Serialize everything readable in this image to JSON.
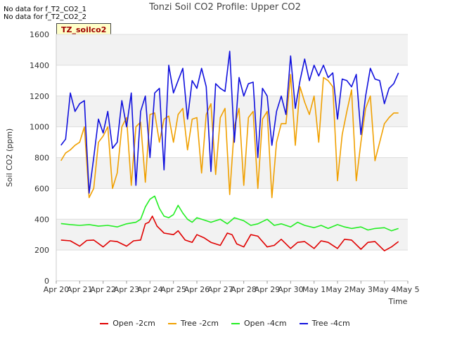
{
  "header": {
    "nodata_lines": [
      "No data for f_T2_CO2_1",
      "No data for f_T2_CO2_2"
    ],
    "badge": "TZ_soilco2"
  },
  "chart_data": {
    "type": "line",
    "title": "Tonzi Soil CO2 Profile: Upper CO2",
    "xlabel": "Time",
    "ylabel": "Soil CO2 (ppm)",
    "ylim": [
      0,
      1600
    ],
    "yticks": [
      0,
      200,
      400,
      600,
      800,
      1000,
      1200,
      1400,
      1600
    ],
    "xlim": [
      0,
      15
    ],
    "xtick_labels": [
      "Apr 20",
      "Apr 21",
      "Apr 22",
      "Apr 23",
      "Apr 24",
      "Apr 25",
      "Apr 26",
      "Apr 27",
      "Apr 28",
      "Apr 29",
      "Apr 30",
      "May 1",
      "May 2",
      "May 3",
      "May 4",
      "May 5"
    ],
    "grid": true,
    "legend_position": "bottom",
    "series": [
      {
        "name": "Open -2cm",
        "color": "#e00000",
        "x": [
          0.2,
          0.6,
          1.0,
          1.3,
          1.6,
          2.0,
          2.3,
          2.6,
          3.0,
          3.3,
          3.6,
          3.8,
          3.95,
          4.1,
          4.3,
          4.6,
          5.0,
          5.2,
          5.5,
          5.8,
          6.0,
          6.3,
          6.6,
          7.0,
          7.3,
          7.5,
          7.7,
          8.0,
          8.3,
          8.6,
          9.0,
          9.3,
          9.6,
          10.0,
          10.3,
          10.6,
          11.0,
          11.3,
          11.6,
          12.0,
          12.3,
          12.6,
          13.0,
          13.3,
          13.6,
          14.0,
          14.3,
          14.6
        ],
        "y": [
          265,
          260,
          225,
          262,
          265,
          220,
          260,
          255,
          225,
          260,
          265,
          370,
          380,
          420,
          355,
          310,
          300,
          325,
          265,
          250,
          300,
          280,
          250,
          230,
          310,
          300,
          240,
          220,
          300,
          290,
          220,
          230,
          270,
          210,
          250,
          255,
          210,
          260,
          250,
          210,
          270,
          265,
          205,
          250,
          255,
          195,
          220,
          255
        ]
      },
      {
        "name": "Tree -2cm",
        "color": "#f0a000",
        "x": [
          0.2,
          0.4,
          0.6,
          0.8,
          1.0,
          1.2,
          1.4,
          1.6,
          1.8,
          2.0,
          2.2,
          2.4,
          2.6,
          2.8,
          3.0,
          3.2,
          3.4,
          3.6,
          3.8,
          4.0,
          4.2,
          4.4,
          4.6,
          4.8,
          5.0,
          5.2,
          5.4,
          5.6,
          5.8,
          6.0,
          6.2,
          6.4,
          6.6,
          6.8,
          7.0,
          7.2,
          7.4,
          7.6,
          7.8,
          8.0,
          8.2,
          8.4,
          8.6,
          8.8,
          9.0,
          9.2,
          9.4,
          9.6,
          9.8,
          10.0,
          10.2,
          10.4,
          10.6,
          10.8,
          11.0,
          11.2,
          11.4,
          11.6,
          11.8,
          12.0,
          12.2,
          12.4,
          12.6,
          12.8,
          13.0,
          13.2,
          13.4,
          13.6,
          13.8,
          14.0,
          14.2,
          14.4,
          14.6
        ],
        "y": [
          780,
          830,
          850,
          880,
          900,
          1000,
          540,
          600,
          900,
          940,
          1000,
          600,
          700,
          1000,
          1060,
          620,
          1000,
          1030,
          640,
          1080,
          1090,
          900,
          1050,
          1070,
          900,
          1080,
          1120,
          850,
          1050,
          1060,
          700,
          1080,
          1150,
          690,
          1060,
          1120,
          560,
          1000,
          1120,
          620,
          1060,
          1100,
          600,
          1050,
          1100,
          540,
          900,
          1020,
          1020,
          1340,
          880,
          1260,
          1160,
          1080,
          1200,
          900,
          1320,
          1300,
          1260,
          650,
          950,
          1100,
          1240,
          650,
          900,
          1120,
          1200,
          780,
          900,
          1020,
          1060,
          1090,
          1090
        ]
      },
      {
        "name": "Open -4cm",
        "color": "#22ee22",
        "x": [
          0.2,
          0.6,
          1.0,
          1.4,
          1.8,
          2.2,
          2.6,
          3.0,
          3.4,
          3.6,
          3.8,
          4.0,
          4.2,
          4.4,
          4.6,
          4.8,
          5.0,
          5.2,
          5.4,
          5.6,
          5.8,
          6.0,
          6.3,
          6.6,
          7.0,
          7.3,
          7.6,
          8.0,
          8.3,
          8.6,
          9.0,
          9.3,
          9.6,
          10.0,
          10.3,
          10.6,
          11.0,
          11.3,
          11.6,
          12.0,
          12.3,
          12.6,
          13.0,
          13.3,
          13.6,
          14.0,
          14.3,
          14.6
        ],
        "y": [
          372,
          365,
          360,
          365,
          355,
          360,
          350,
          370,
          380,
          400,
          480,
          530,
          550,
          470,
          420,
          410,
          430,
          490,
          440,
          400,
          380,
          410,
          395,
          380,
          400,
          370,
          410,
          390,
          360,
          370,
          400,
          360,
          370,
          350,
          380,
          360,
          345,
          360,
          340,
          365,
          350,
          340,
          350,
          330,
          340,
          345,
          325,
          340
        ]
      },
      {
        "name": "Tree -4cm",
        "color": "#1010dd",
        "x": [
          0.2,
          0.4,
          0.6,
          0.8,
          1.0,
          1.2,
          1.4,
          1.6,
          1.8,
          2.0,
          2.2,
          2.4,
          2.6,
          2.8,
          3.0,
          3.2,
          3.4,
          3.6,
          3.8,
          4.0,
          4.2,
          4.4,
          4.6,
          4.8,
          5.0,
          5.2,
          5.4,
          5.6,
          5.8,
          6.0,
          6.2,
          6.4,
          6.6,
          6.8,
          7.0,
          7.2,
          7.4,
          7.6,
          7.8,
          8.0,
          8.2,
          8.4,
          8.6,
          8.8,
          9.0,
          9.2,
          9.4,
          9.6,
          9.8,
          10.0,
          10.2,
          10.4,
          10.6,
          10.8,
          11.0,
          11.2,
          11.4,
          11.6,
          11.8,
          12.0,
          12.2,
          12.4,
          12.6,
          12.8,
          13.0,
          13.2,
          13.4,
          13.6,
          13.8,
          14.0,
          14.2,
          14.4,
          14.6
        ],
        "y": [
          880,
          920,
          1220,
          1100,
          1150,
          1170,
          570,
          800,
          1050,
          960,
          1100,
          860,
          900,
          1170,
          1000,
          1220,
          620,
          1100,
          1200,
          800,
          1220,
          1250,
          720,
          1400,
          1220,
          1300,
          1380,
          1050,
          1300,
          1250,
          1380,
          1260,
          710,
          1280,
          1250,
          1230,
          1490,
          900,
          1320,
          1200,
          1280,
          1290,
          800,
          1250,
          1200,
          880,
          1100,
          1200,
          1080,
          1460,
          1120,
          1300,
          1440,
          1300,
          1400,
          1330,
          1400,
          1320,
          1350,
          1050,
          1310,
          1300,
          1260,
          1340,
          950,
          1200,
          1380,
          1310,
          1300,
          1150,
          1250,
          1280,
          1350
        ]
      }
    ]
  }
}
